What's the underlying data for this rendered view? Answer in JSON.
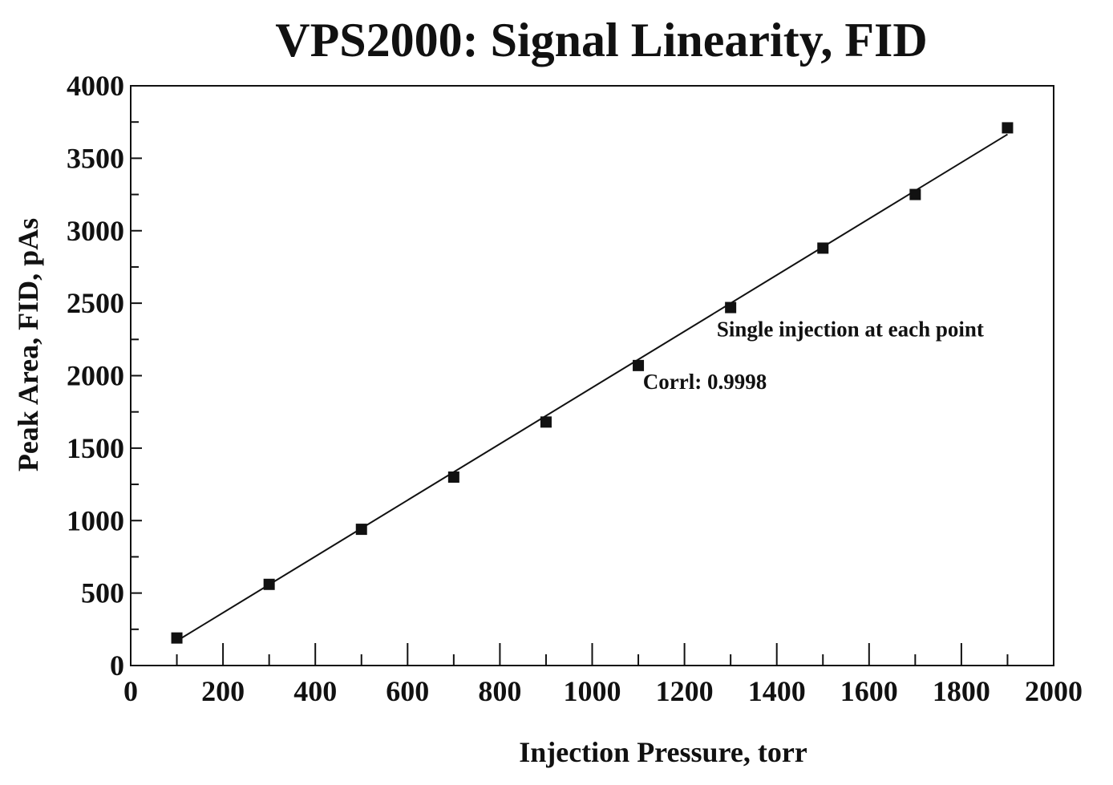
{
  "chart_data": {
    "type": "scatter",
    "title": "VPS2000:  Signal Linearity, FID",
    "xlabel": "Injection Pressure, torr",
    "ylabel": "Peak Area, FID, pAs",
    "xlim": [
      0,
      2000
    ],
    "ylim": [
      0,
      4000
    ],
    "x_ticks": [
      0,
      200,
      400,
      600,
      800,
      1000,
      1200,
      1400,
      1600,
      1800,
      2000
    ],
    "y_ticks": [
      0,
      500,
      1000,
      1500,
      2000,
      2500,
      3000,
      3500,
      4000
    ],
    "x_tick_labels": [
      "0",
      "200",
      "400",
      "600",
      "800",
      "1000",
      "1200",
      "1400",
      "1600",
      "1800",
      "2000"
    ],
    "y_tick_labels": [
      "0",
      "500",
      "1000",
      "1500",
      "2000",
      "2500",
      "3000",
      "3500",
      "4000"
    ],
    "grid": false,
    "marker": "square",
    "color": "#111111",
    "series": [
      {
        "x": [
          100,
          300,
          500,
          700,
          900,
          1100,
          1300,
          1500,
          1700,
          1900
        ],
        "y": [
          190,
          560,
          940,
          1300,
          1680,
          2070,
          2470,
          2880,
          3250,
          3710
        ]
      }
    ],
    "fit_line": {
      "x": [
        100,
        1900
      ],
      "y": [
        170,
        3665
      ]
    },
    "annotations": [
      {
        "text": "Single injection at each point",
        "x": 1270,
        "y": 2270
      },
      {
        "text": "Corrl:  0.9998",
        "x": 1110,
        "y": 1910
      }
    ]
  }
}
